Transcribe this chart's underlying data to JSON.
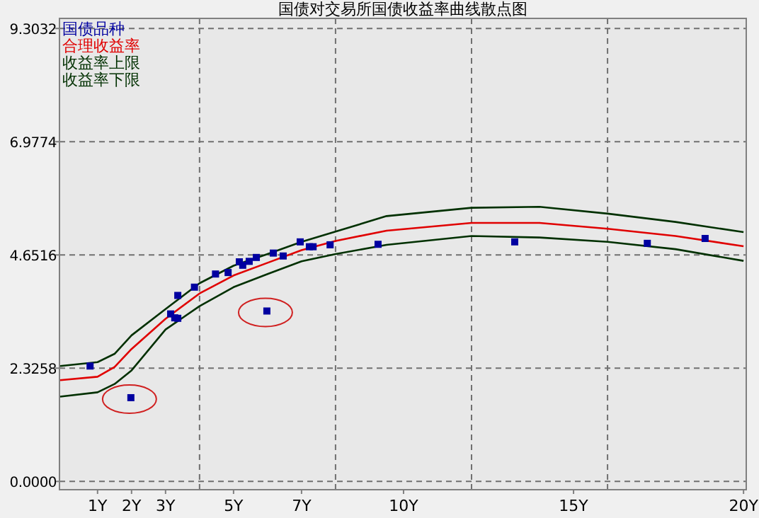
{
  "chart_data": {
    "type": "scatter",
    "title": "国债对交易所国债收益率曲线散点图",
    "xlim": [
      -0.12,
      20.08
    ],
    "ylim": [
      -0.17,
      9.51
    ],
    "xticks": [
      {
        "value": 1,
        "label": "1Y"
      },
      {
        "value": 2,
        "label": "2Y"
      },
      {
        "value": 3,
        "label": "3Y"
      },
      {
        "value": 5,
        "label": "5Y"
      },
      {
        "value": 7,
        "label": "7Y"
      },
      {
        "value": 10,
        "label": "10Y"
      },
      {
        "value": 15,
        "label": "15Y"
      },
      {
        "value": 20,
        "label": "20Y"
      }
    ],
    "yticks": [
      {
        "value": 0,
        "label": "0.0000"
      },
      {
        "value": 2.3258,
        "label": "2.3258"
      },
      {
        "value": 4.6516,
        "label": "4.6516"
      },
      {
        "value": 6.9774,
        "label": "6.9774"
      },
      {
        "value": 9.3032,
        "label": "9.3032"
      }
    ],
    "grid": "y",
    "legend": "top left",
    "ref_lines": [
      {
        "axis": "x",
        "value": 4,
        "label": null,
        "line_style": "dashed",
        "color": "#707070"
      },
      {
        "axis": "x",
        "value": 8,
        "label": null,
        "line_style": "dashed",
        "color": "#707070"
      },
      {
        "axis": "x",
        "value": 12,
        "label": null,
        "line_style": "dashed",
        "color": "#707070"
      },
      {
        "axis": "x",
        "value": 16,
        "label": null,
        "line_style": "dashed",
        "color": "#707070"
      }
    ],
    "series": [
      {
        "name": "国债品种",
        "marker": "square",
        "color": "#0000a0",
        "x": [
          0.78,
          1.98,
          3.36,
          3.15,
          3.27,
          3.36,
          3.85,
          4.47,
          4.84,
          5.17,
          5.27,
          5.46,
          5.67,
          5.98,
          6.17,
          6.46,
          6.96,
          7.23,
          7.34,
          7.84,
          9.25,
          13.27,
          17.17,
          18.87
        ],
        "values": [
          2.37,
          1.72,
          3.82,
          3.44,
          3.36,
          3.35,
          3.99,
          4.26,
          4.29,
          4.51,
          4.44,
          4.52,
          4.6,
          3.5,
          4.69,
          4.63,
          4.92,
          4.82,
          4.82,
          4.86,
          4.87,
          4.92,
          4.89,
          4.99
        ]
      },
      {
        "name": "合理收益率",
        "type": "line",
        "color": "#e00000",
        "x": [
          -0.1,
          1,
          1.5,
          2,
          3,
          4,
          5,
          6,
          7,
          8,
          9.5,
          12,
          14,
          16,
          18,
          20
        ],
        "values": [
          2.08,
          2.15,
          2.35,
          2.72,
          3.34,
          3.86,
          4.23,
          4.49,
          4.75,
          4.94,
          5.15,
          5.31,
          5.31,
          5.19,
          5.04,
          4.83
        ]
      },
      {
        "name": "收益率上限",
        "type": "line",
        "color": "#003000",
        "x": [
          -0.1,
          1,
          1.5,
          2,
          3,
          4,
          5,
          6,
          7,
          8,
          9.5,
          12,
          14,
          16,
          18,
          20
        ],
        "values": [
          2.37,
          2.45,
          2.62,
          3.0,
          3.54,
          4.07,
          4.43,
          4.67,
          4.92,
          5.13,
          5.45,
          5.62,
          5.64,
          5.5,
          5.33,
          5.12
        ]
      },
      {
        "name": "收益率下限",
        "type": "line",
        "color": "#003000",
        "x": [
          -0.1,
          1,
          1.5,
          2,
          3,
          4,
          5,
          6,
          7,
          8,
          9.5,
          12,
          14,
          16,
          18,
          20
        ],
        "values": [
          1.74,
          1.83,
          2.0,
          2.28,
          3.12,
          3.6,
          3.99,
          4.26,
          4.52,
          4.67,
          4.86,
          5.04,
          5.01,
          4.92,
          4.77,
          4.53
        ]
      }
    ]
  }
}
